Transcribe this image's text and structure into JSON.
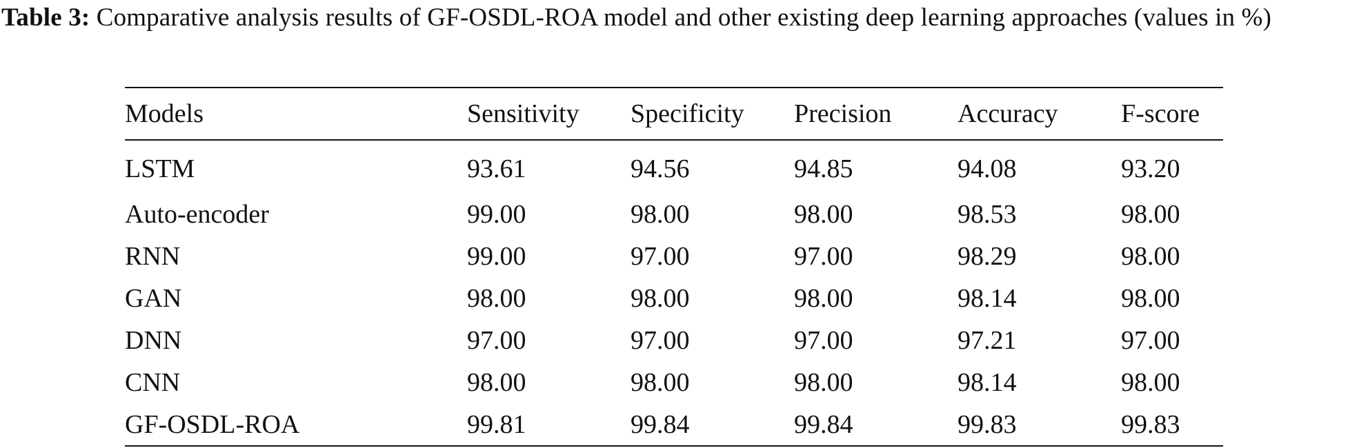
{
  "caption": {
    "label": "Table 3:",
    "text": " Comparative analysis results of GF-OSDL-ROA model and other existing deep learning approaches (values in %)"
  },
  "table": {
    "headers": [
      "Models",
      "Sensitivity",
      "Specificity",
      "Precision",
      "Accuracy",
      "F-score"
    ],
    "rows": [
      [
        "LSTM",
        "93.61",
        "94.56",
        "94.85",
        "94.08",
        "93.20"
      ],
      [
        "Auto-encoder",
        "99.00",
        "98.00",
        "98.00",
        "98.53",
        "98.00"
      ],
      [
        "RNN",
        "99.00",
        "97.00",
        "97.00",
        "98.29",
        "98.00"
      ],
      [
        "GAN",
        "98.00",
        "98.00",
        "98.00",
        "98.14",
        "98.00"
      ],
      [
        "DNN",
        "97.00",
        "97.00",
        "97.00",
        "97.21",
        "97.00"
      ],
      [
        "CNN",
        "98.00",
        "98.00",
        "98.00",
        "98.14",
        "98.00"
      ],
      [
        "GF-OSDL-ROA",
        "99.81",
        "99.84",
        "99.84",
        "99.83",
        "99.83"
      ]
    ]
  }
}
